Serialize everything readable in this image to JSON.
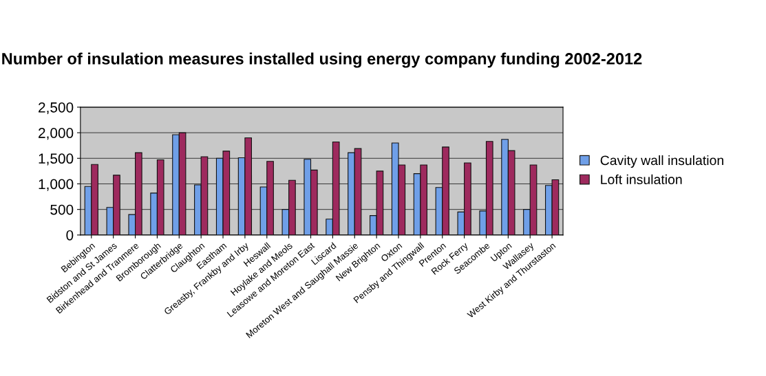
{
  "chart_data": {
    "type": "bar",
    "title": "Number of insulation measures installed using energy company funding 2002-2012",
    "categories": [
      "Bebington",
      "Bidston and St James",
      "Birkenhead and Tranmere",
      "Bromborough",
      "Clatterbridge",
      "Claughton",
      "Eastham",
      "Greasby, Frankby and Irby",
      "Heswall",
      "Hoylake and Meols",
      "Leasowe and Moreton East",
      "Liscard",
      "Moreton West and Saughall Massie",
      "New Brighton",
      "Oxton",
      "Pensby and Thingwall",
      "Prenton",
      "Rock Ferry",
      "Seacombe",
      "Upton",
      "Wallasey",
      "West Kirby and Thurstaston"
    ],
    "series": [
      {
        "name": "Cavity wall insulation",
        "color": "#6f9fe8",
        "values": [
          950,
          540,
          400,
          820,
          1960,
          980,
          1500,
          1510,
          940,
          500,
          1480,
          310,
          1610,
          380,
          1800,
          1200,
          930,
          450,
          470,
          1870,
          500,
          970
        ]
      },
      {
        "name": "Loft insulation",
        "color": "#9e2a5e",
        "values": [
          1380,
          1170,
          1610,
          1470,
          2000,
          1530,
          1640,
          1900,
          1440,
          1070,
          1270,
          1820,
          1690,
          1250,
          1370,
          1370,
          1720,
          1410,
          1830,
          1650,
          1370,
          1080
        ]
      }
    ],
    "ylim": [
      0,
      2500
    ],
    "yticks": [
      {
        "value": 0,
        "label": "0"
      },
      {
        "value": 500,
        "label": "500"
      },
      {
        "value": 1000,
        "label": "1,000"
      },
      {
        "value": 1500,
        "label": "1,500"
      },
      {
        "value": 2000,
        "label": "2,000"
      },
      {
        "value": 2500,
        "label": "2,500"
      }
    ],
    "grid": "y",
    "legend": "right"
  }
}
